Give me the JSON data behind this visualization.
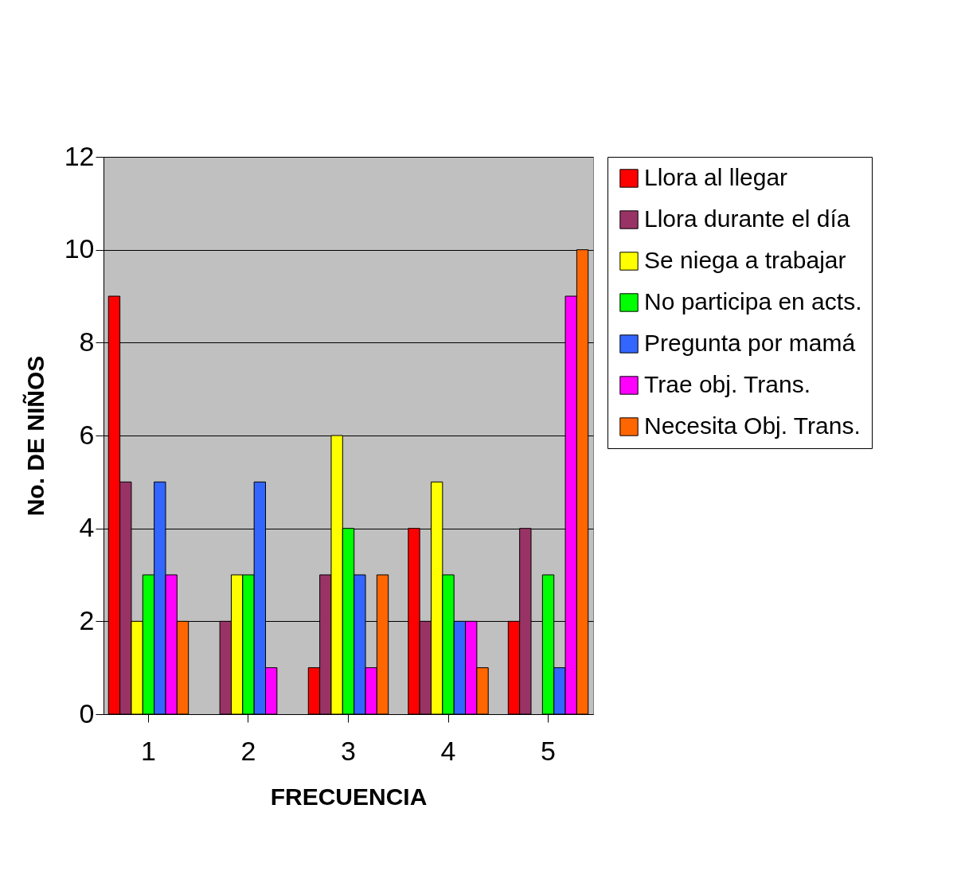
{
  "chart_data": {
    "type": "bar",
    "xlabel": "FRECUENCIA",
    "ylabel": "No. DE NIÑOS",
    "categories": [
      "1",
      "2",
      "3",
      "4",
      "5"
    ],
    "series": [
      {
        "name": "Llora al llegar",
        "color": "#ff0000",
        "values": [
          9,
          null,
          1,
          4,
          2
        ]
      },
      {
        "name": "Llora durante el día",
        "color": "#993366",
        "values": [
          5,
          2,
          3,
          2,
          4
        ]
      },
      {
        "name": "Se niega a trabajar",
        "color": "#ffff00",
        "values": [
          2,
          3,
          6,
          5,
          null
        ]
      },
      {
        "name": "No participa en acts.",
        "color": "#00ff00",
        "values": [
          3,
          3,
          4,
          3,
          3
        ]
      },
      {
        "name": "Pregunta por mamá",
        "color": "#3366ff",
        "values": [
          5,
          5,
          3,
          2,
          1
        ]
      },
      {
        "name": "Trae obj. Trans.",
        "color": "#ff00ff",
        "values": [
          3,
          1,
          1,
          2,
          9
        ]
      },
      {
        "name": "Necesita Obj. Trans.",
        "color": "#ff6600",
        "values": [
          2,
          null,
          3,
          1,
          10
        ]
      }
    ],
    "ylim": [
      0,
      12
    ],
    "yticks": [
      0,
      2,
      4,
      6,
      8,
      10,
      12
    ],
    "grid": "y",
    "legend": "right"
  }
}
